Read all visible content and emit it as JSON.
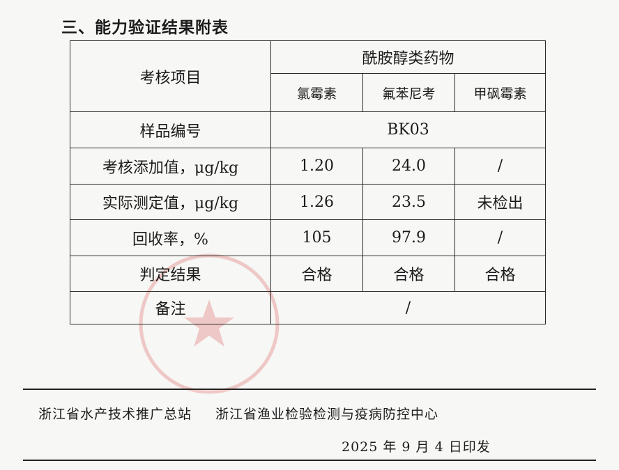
{
  "heading": "三、能力验证结果附表",
  "table": {
    "item_header": "考核项目",
    "group_header": "酰胺醇类药物",
    "drugs": [
      "氯霉素",
      "氟苯尼考",
      "甲砜霉素"
    ],
    "sample_row": {
      "label": "样品编号",
      "value": "BK03"
    },
    "rows": [
      {
        "label": "考核添加值，μg/kg",
        "values": [
          "1.20",
          "24.0",
          "/"
        ]
      },
      {
        "label": "实际测定值，μg/kg",
        "values": [
          "1.26",
          "23.5",
          "未检出"
        ]
      },
      {
        "label": "回收率，%",
        "values": [
          "105",
          "97.9",
          "/"
        ]
      },
      {
        "label": "判定结果",
        "values": [
          "合格",
          "合格",
          "合格"
        ]
      }
    ],
    "remark_row": {
      "label": "备注",
      "value": "/"
    }
  },
  "footer": {
    "org1": "浙江省水产技术推广总站",
    "org2": "浙江省渔业检验检测与疫病防控中心",
    "date": "2025 年 9 月 4 日印发"
  },
  "colors": {
    "stamp": "#d9534f",
    "text": "#1b1b1b"
  }
}
